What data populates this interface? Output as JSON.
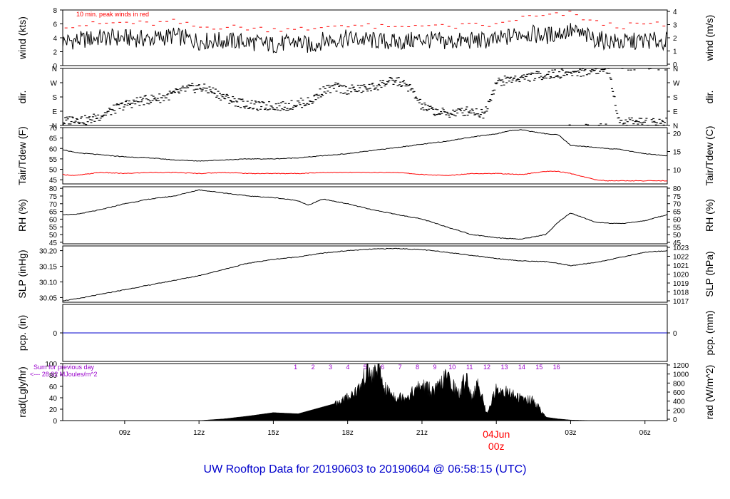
{
  "caption": "UW Rooftop Data for 20190603  to  20190604 @ 06:58:15  (UTC)",
  "colors": {
    "series": "#000000",
    "peak": "#ff0000",
    "dewpoint": "#ff0000",
    "precip": "#0000cc",
    "purple": "#9900cc",
    "frame": "#000000",
    "day": "#ff0000"
  },
  "chart_data": [
    {
      "type": "line",
      "panel": "wind",
      "ylabel_left": "wind (kts)",
      "ylabel_right": "wind (m/s)",
      "yticks_left": [
        "0",
        "2",
        "4",
        "6",
        "8"
      ],
      "yticks_right": [
        "0",
        "1",
        "2",
        "3",
        "4"
      ],
      "ylim": [
        0,
        8
      ],
      "annotation": "10 min. peak winds in red",
      "series": [
        {
          "color": "#000000",
          "x": [
            6.5,
            7,
            8,
            9,
            10,
            11,
            12,
            13,
            14,
            15,
            16,
            16.5,
            17,
            18,
            19,
            20,
            21,
            22,
            23,
            24,
            25,
            26,
            27,
            28,
            29,
            30,
            30.9
          ],
          "y": [
            3.5,
            3.6,
            4.0,
            4.0,
            3.8,
            4.3,
            3.5,
            3.6,
            3.4,
            3.0,
            3.4,
            2.8,
            3.6,
            3.9,
            3.6,
            3.3,
            3.8,
            3.4,
            3.6,
            3.6,
            4.7,
            4.3,
            5.0,
            3.8,
            3.3,
            3.6,
            3.5
          ]
        },
        {
          "color": "#ff0000",
          "x": [
            6.5,
            7,
            8,
            9,
            10,
            11,
            12,
            13,
            14,
            15,
            16,
            16.5,
            17,
            18,
            19,
            20,
            21,
            22,
            23,
            24,
            25,
            26,
            27,
            28,
            29,
            30,
            30.9
          ],
          "y": [
            5.8,
            5.8,
            6.0,
            6.2,
            6.0,
            6.3,
            5.5,
            5.6,
            5.4,
            5.2,
            5.5,
            4.8,
            5.6,
            5.9,
            5.6,
            5.4,
            6.0,
            5.5,
            5.8,
            5.8,
            6.9,
            7.1,
            7.5,
            6.2,
            5.6,
            6.0,
            5.8
          ]
        }
      ]
    },
    {
      "type": "scatter",
      "panel": "dir",
      "ylabel_left": "dir.",
      "ylabel_right": "dir.",
      "yticks_left": [
        "N",
        "E",
        "S",
        "W",
        "N"
      ],
      "yticks_right": [
        "N",
        "E",
        "S",
        "W",
        "N"
      ],
      "ylim": [
        0,
        360
      ],
      "series": [
        {
          "color": "#000000",
          "x": [
            6.5,
            7,
            7.5,
            8,
            8.5,
            9,
            9.5,
            10,
            10.5,
            11,
            11.5,
            12,
            12.5,
            13,
            13.5,
            14,
            14.5,
            15,
            15.5,
            16,
            16.5,
            17,
            17.5,
            18,
            18.5,
            19,
            19.5,
            20,
            20.5,
            21,
            21.5,
            22,
            22.5,
            23,
            23.5,
            24,
            24.5,
            25,
            25.5,
            26,
            26.5,
            27,
            27.5,
            28,
            28.5,
            29,
            29.5,
            30,
            30.5
          ],
          "y": [
            20,
            45,
            30,
            60,
            95,
            130,
            150,
            165,
            175,
            200,
            230,
            240,
            220,
            180,
            150,
            130,
            120,
            125,
            120,
            140,
            150,
            220,
            240,
            225,
            230,
            240,
            270,
            280,
            240,
            120,
            90,
            75,
            85,
            95,
            70,
            270,
            290,
            300,
            310,
            320,
            325,
            335,
            340,
            350,
            355,
            15,
            20,
            25,
            20
          ]
        }
      ]
    },
    {
      "type": "line",
      "panel": "tair_tdew",
      "ylabel_left": "Tair/Tdew (F)",
      "ylabel_right": "Tair/Tdew (C)",
      "yticks_left": [
        "45",
        "50",
        "55",
        "60",
        "65",
        "70"
      ],
      "yticks_right": [
        "10",
        "15",
        "20"
      ],
      "ylim": [
        43,
        70
      ],
      "series": [
        {
          "color": "#000000",
          "x": [
            6.5,
            7,
            8,
            9,
            10,
            11,
            12,
            13,
            14,
            15,
            16,
            17,
            18,
            19,
            20,
            21,
            22,
            23,
            24,
            24.5,
            25,
            26,
            26.5,
            27,
            28,
            29,
            30,
            30.9
          ],
          "y": [
            59.5,
            58,
            57,
            56,
            55.5,
            54.5,
            54,
            54.5,
            55,
            55,
            55.5,
            56.5,
            57.5,
            59,
            60.5,
            62,
            63.5,
            65.5,
            67,
            68.5,
            69,
            67,
            66.5,
            61.5,
            60.5,
            59.5,
            57.5,
            56.5
          ]
        },
        {
          "color": "#ff0000",
          "x": [
            6.5,
            7,
            8,
            9,
            10,
            11,
            12,
            13,
            14,
            15,
            16,
            17,
            18,
            19,
            20,
            21,
            22,
            23,
            24,
            25,
            26,
            26.5,
            27,
            28,
            28.5,
            29,
            30,
            30.9
          ],
          "y": [
            47.5,
            47,
            48.5,
            48,
            48.5,
            48.5,
            48,
            48.5,
            48,
            48,
            48,
            48.5,
            48.5,
            48.5,
            48.5,
            47.5,
            47,
            48,
            48,
            47.5,
            49,
            49,
            48,
            45,
            44.5,
            44.5,
            44.5,
            44.5
          ]
        }
      ]
    },
    {
      "type": "line",
      "panel": "rh",
      "ylabel_left": "RH (%)",
      "ylabel_right": "RH (%)",
      "yticks_left": [
        "45",
        "50",
        "55",
        "60",
        "65",
        "70",
        "75",
        "80"
      ],
      "yticks_right": [
        "45",
        "50",
        "55",
        "60",
        "65",
        "70",
        "75",
        "80"
      ],
      "ylim": [
        44,
        81
      ],
      "series": [
        {
          "color": "#000000",
          "x": [
            6.5,
            7,
            8,
            9,
            10,
            11,
            12,
            13,
            14,
            15,
            16,
            16.4,
            17,
            18,
            19,
            20,
            21,
            22,
            23,
            24,
            25,
            26,
            26.5,
            27,
            28,
            29,
            30,
            30.9
          ],
          "y": [
            63,
            63,
            66,
            70,
            73,
            75,
            79,
            77,
            75,
            74,
            72,
            69,
            73,
            70,
            66,
            63,
            60,
            55,
            50,
            48,
            47,
            50,
            58,
            64,
            58,
            57,
            59,
            63
          ]
        }
      ]
    },
    {
      "type": "line",
      "panel": "slp",
      "ylabel_left": "SLP (inHg)",
      "ylabel_right": "SLP (hPa)",
      "yticks_left": [
        "30.05",
        "30.10",
        "30.15",
        "30.20"
      ],
      "yticks_right": [
        "1017",
        "1018",
        "1019",
        "1020",
        "1021",
        "1022",
        "1023"
      ],
      "ylim": [
        30.035,
        30.215
      ],
      "series": [
        {
          "color": "#000000",
          "x": [
            6.5,
            7,
            8,
            9,
            10,
            11,
            12,
            13,
            14,
            15,
            16,
            17,
            18,
            19,
            20,
            21,
            22,
            23,
            24,
            25,
            26,
            27,
            28,
            29,
            30,
            30.9
          ],
          "y": [
            30.04,
            30.045,
            30.06,
            30.075,
            30.09,
            30.105,
            30.12,
            30.14,
            30.16,
            30.172,
            30.18,
            30.192,
            30.2,
            30.205,
            30.207,
            30.203,
            30.195,
            30.185,
            30.175,
            30.167,
            30.165,
            30.152,
            30.162,
            30.178,
            30.195,
            30.2
          ]
        }
      ]
    },
    {
      "type": "line",
      "panel": "pcp",
      "ylabel_left": "pcp. (in)",
      "ylabel_right": "pcp. (mm)",
      "yticks_left": [
        "0"
      ],
      "yticks_right": [
        "0"
      ],
      "ylim": [
        -0.5,
        0.5
      ],
      "series": [
        {
          "color": "#0000cc",
          "x": [
            6.5,
            30.9
          ],
          "y": [
            0,
            0
          ]
        }
      ]
    },
    {
      "type": "area",
      "panel": "rad",
      "ylabel_left": "rad(Lgly/hr)",
      "ylabel_right": "rad (W/m^2)",
      "yticks_left": [
        "0",
        "20",
        "40",
        "60",
        "80",
        "100"
      ],
      "yticks_right": [
        "0",
        "200",
        "400",
        "600",
        "800",
        "1000",
        "1200"
      ],
      "ylim": [
        0,
        100
      ],
      "annotations": [
        "Sum for previous day",
        "<--- 28.92 MJoules/m^2"
      ],
      "hour_labels": [
        "1",
        "2",
        "3",
        "4",
        "5",
        "6",
        "7",
        "8",
        "9",
        "10",
        "11",
        "12",
        "13",
        "14",
        "15",
        "16"
      ],
      "series": [
        {
          "color": "#000000",
          "x": [
            11.8,
            12,
            13,
            14,
            15,
            16,
            17,
            17.5,
            18,
            18.5,
            18.8,
            19,
            19.2,
            19.5,
            20,
            20.5,
            21,
            21.5,
            22,
            22.5,
            22.8,
            23,
            23.3,
            23.6,
            24,
            24.5,
            25,
            25.5,
            26,
            26.5,
            27,
            28,
            28.5
          ],
          "y": [
            0,
            0,
            3,
            8,
            14,
            12,
            24,
            30,
            40,
            58,
            90,
            75,
            95,
            55,
            40,
            45,
            62,
            50,
            78,
            45,
            80,
            40,
            65,
            12,
            55,
            48,
            38,
            35,
            6,
            3,
            1,
            0,
            0
          ]
        }
      ]
    }
  ],
  "x_axis": {
    "ticks": [
      {
        "label": "09z",
        "x": 9
      },
      {
        "label": "12z",
        "x": 12
      },
      {
        "label": "15z",
        "x": 15
      },
      {
        "label": "18z",
        "x": 18
      },
      {
        "label": "21z",
        "x": 21
      },
      {
        "label": "00z",
        "x": 24
      },
      {
        "label": "03z",
        "x": 27
      },
      {
        "label": "06z",
        "x": 30
      }
    ],
    "day_label": "04Jun",
    "midnight_label": "00z",
    "xlim": [
      6.5,
      30.9
    ]
  }
}
